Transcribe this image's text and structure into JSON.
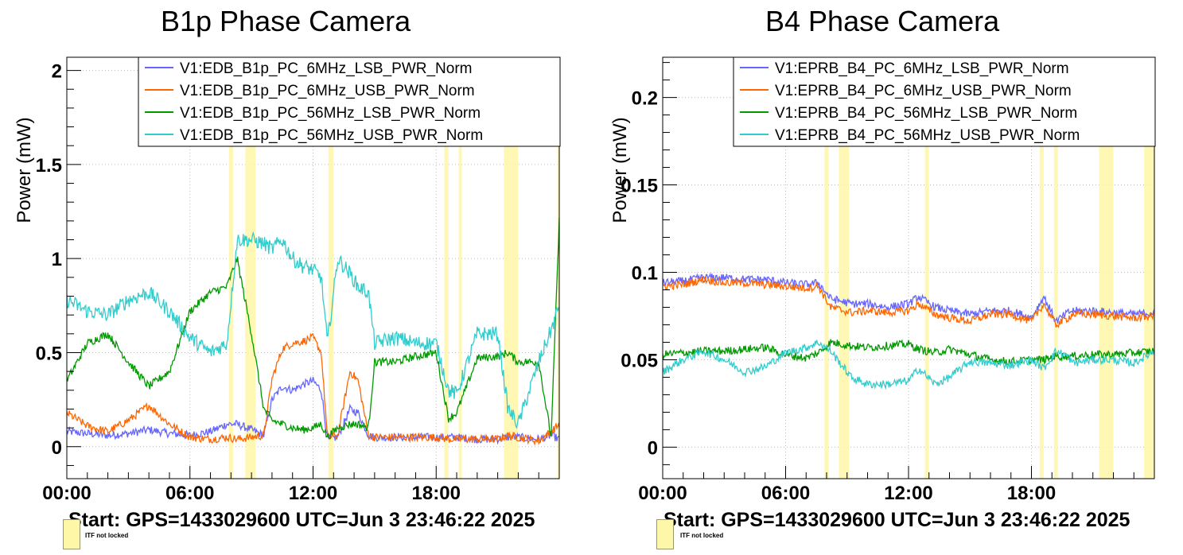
{
  "chart_data": [
    {
      "type": "line",
      "title": "B1p Phase Camera",
      "ylabel": "Power (mW)",
      "xlabel": "",
      "ylim": [
        -0.17,
        2.07
      ],
      "xlim": [
        "00:00",
        "24:00"
      ],
      "grid": true,
      "legend_position": "top-right",
      "x_tick_labels": [
        "00:00",
        "06:00",
        "12:00",
        "18:00"
      ],
      "y_tick_labels": [
        "0",
        "0.5",
        "1",
        "1.5",
        "2"
      ],
      "shaded_windows_hours": [
        [
          7.9,
          8.1
        ],
        [
          8.7,
          9.2
        ],
        [
          12.75,
          13.0
        ],
        [
          18.4,
          18.6
        ],
        [
          19.1,
          19.25
        ],
        [
          21.3,
          22.0
        ],
        [
          23.9,
          24.0
        ]
      ],
      "series": [
        {
          "name": "V1:EDB_B1p_PC_6MHz_LSB_PWR_Norm",
          "color": "#6666ff",
          "x": [
            0,
            1,
            2,
            3,
            4,
            5,
            6,
            7,
            7.8,
            8.3,
            9.0,
            9.6,
            10,
            10.5,
            11,
            11.5,
            12,
            12.4,
            12.7,
            13.2,
            13.8,
            14.2,
            14.7,
            15,
            16,
            17,
            18,
            18.6,
            19,
            20,
            21,
            21.5,
            22,
            23,
            23.6,
            24
          ],
          "y": [
            0.08,
            0.07,
            0.06,
            0.07,
            0.09,
            0.07,
            0.06,
            0.08,
            0.12,
            0.12,
            0.09,
            0.06,
            0.25,
            0.32,
            0.3,
            0.33,
            0.35,
            0.3,
            0.04,
            0.05,
            0.2,
            0.18,
            0.06,
            0.05,
            0.05,
            0.05,
            0.05,
            0.05,
            0.05,
            0.04,
            0.04,
            0.05,
            0.05,
            0.04,
            0.06,
            0.04
          ]
        },
        {
          "name": "V1:EDB_B1p_PC_6MHz_USB_PWR_Norm",
          "color": "#ff6600",
          "x": [
            0,
            1,
            2,
            3,
            4,
            5,
            6,
            7,
            7.8,
            8.3,
            9.0,
            9.6,
            10,
            10.5,
            11,
            11.5,
            12,
            12.4,
            12.7,
            13.2,
            13.8,
            14.2,
            14.7,
            15,
            16,
            17,
            18,
            18.6,
            19,
            20,
            21,
            21.5,
            22,
            23,
            23.6,
            24
          ],
          "y": [
            0.18,
            0.11,
            0.08,
            0.14,
            0.22,
            0.12,
            0.05,
            0.04,
            0.05,
            0.04,
            0.05,
            0.06,
            0.36,
            0.52,
            0.55,
            0.56,
            0.58,
            0.5,
            0.05,
            0.06,
            0.4,
            0.35,
            0.06,
            0.05,
            0.05,
            0.05,
            0.05,
            0.04,
            0.04,
            0.04,
            0.04,
            0.06,
            0.05,
            0.03,
            0.08,
            0.12
          ]
        },
        {
          "name": "V1:EDB_B1p_PC_56MHz_LSB_PWR_Norm",
          "color": "#009900",
          "x": [
            0,
            1,
            2,
            3,
            4,
            5,
            6,
            7,
            7.8,
            8.3,
            9.0,
            9.6,
            10,
            10.5,
            11,
            11.5,
            12,
            12.4,
            12.7,
            13.2,
            13.8,
            14.2,
            14.7,
            15,
            16,
            17,
            18,
            18.6,
            19,
            20,
            21,
            21.5,
            22,
            23,
            23.6,
            24
          ],
          "y": [
            0.35,
            0.55,
            0.6,
            0.45,
            0.32,
            0.4,
            0.72,
            0.82,
            0.85,
            1.0,
            0.6,
            0.2,
            0.14,
            0.12,
            0.1,
            0.09,
            0.1,
            0.12,
            0.05,
            0.1,
            0.12,
            0.12,
            0.1,
            0.45,
            0.45,
            0.48,
            0.5,
            0.15,
            0.18,
            0.47,
            0.48,
            0.5,
            0.45,
            0.45,
            0.05,
            1.2
          ]
        },
        {
          "name": "V1:EDB_B1p_PC_56MHz_USB_PWR_Norm",
          "color": "#33cccc",
          "x": [
            0,
            1,
            2,
            3,
            4,
            5,
            6,
            7,
            7.8,
            8.3,
            9.0,
            9.6,
            10,
            10.5,
            11,
            11.5,
            12,
            12.4,
            12.7,
            13.2,
            13.8,
            14.2,
            14.7,
            15,
            16,
            17,
            18,
            18.6,
            19,
            20,
            21,
            21.5,
            22,
            23,
            23.6,
            24
          ],
          "y": [
            0.78,
            0.72,
            0.7,
            0.78,
            0.82,
            0.72,
            0.58,
            0.5,
            0.55,
            1.1,
            1.1,
            1.08,
            1.05,
            1.1,
            1.0,
            0.96,
            0.94,
            0.9,
            0.55,
            1.0,
            0.92,
            0.85,
            0.82,
            0.55,
            0.58,
            0.55,
            0.55,
            0.3,
            0.28,
            0.6,
            0.6,
            0.2,
            0.12,
            0.45,
            0.62,
            0.75
          ]
        }
      ]
    },
    {
      "type": "line",
      "title": "B4 Phase Camera",
      "ylabel": "Power (mW)",
      "xlabel": "",
      "ylim": [
        -0.018,
        0.223
      ],
      "xlim": [
        "00:00",
        "24:00"
      ],
      "grid": true,
      "legend_position": "top-right",
      "x_tick_labels": [
        "00:00",
        "06:00",
        "12:00",
        "18:00"
      ],
      "y_tick_labels": [
        "0",
        "0.05",
        "0.1",
        "0.15",
        "0.2"
      ],
      "shaded_windows_hours": [
        [
          7.9,
          8.1
        ],
        [
          8.6,
          9.1
        ],
        [
          12.8,
          13.0
        ],
        [
          18.4,
          18.6
        ],
        [
          19.1,
          19.3
        ],
        [
          21.3,
          22.0
        ],
        [
          23.5,
          24.0
        ]
      ],
      "series": [
        {
          "name": "V1:EPRB_B4_PC_6MHz_LSB_PWR_Norm",
          "color": "#6666ff",
          "x": [
            0,
            1,
            2,
            3,
            4,
            5,
            6,
            7,
            7.6,
            8.2,
            9.2,
            10,
            11,
            12,
            12.5,
            13.3,
            14,
            15,
            16,
            17,
            18,
            18.6,
            19.2,
            19.8,
            20,
            21,
            22,
            23,
            24
          ],
          "y": [
            0.094,
            0.095,
            0.097,
            0.097,
            0.096,
            0.096,
            0.094,
            0.093,
            0.094,
            0.085,
            0.082,
            0.082,
            0.08,
            0.082,
            0.086,
            0.08,
            0.078,
            0.076,
            0.078,
            0.078,
            0.074,
            0.086,
            0.072,
            0.077,
            0.078,
            0.078,
            0.077,
            0.076,
            0.077
          ]
        },
        {
          "name": "V1:EPRB_B4_PC_6MHz_USB_PWR_Norm",
          "color": "#ff6600",
          "x": [
            0,
            1,
            2,
            3,
            4,
            5,
            6,
            7,
            7.6,
            8.2,
            9.2,
            10,
            11,
            12,
            12.5,
            13.3,
            14,
            15,
            16,
            17,
            18,
            18.6,
            19.2,
            19.8,
            20,
            21,
            22,
            23,
            24
          ],
          "y": [
            0.092,
            0.093,
            0.096,
            0.094,
            0.094,
            0.093,
            0.092,
            0.091,
            0.092,
            0.08,
            0.077,
            0.078,
            0.077,
            0.078,
            0.082,
            0.076,
            0.074,
            0.072,
            0.076,
            0.076,
            0.072,
            0.082,
            0.07,
            0.074,
            0.076,
            0.076,
            0.075,
            0.074,
            0.075
          ]
        },
        {
          "name": "V1:EPRB_B4_PC_56MHz_LSB_PWR_Norm",
          "color": "#009900",
          "x": [
            0,
            1,
            2,
            3,
            4,
            5,
            6,
            7,
            7.6,
            8.2,
            9.2,
            10,
            11,
            12,
            12.5,
            13.3,
            14,
            15,
            16,
            17,
            18,
            18.6,
            19.2,
            19.8,
            20,
            21,
            22,
            23,
            24
          ],
          "y": [
            0.053,
            0.054,
            0.055,
            0.055,
            0.056,
            0.057,
            0.053,
            0.051,
            0.054,
            0.06,
            0.058,
            0.057,
            0.058,
            0.059,
            0.056,
            0.054,
            0.056,
            0.053,
            0.05,
            0.049,
            0.05,
            0.05,
            0.052,
            0.052,
            0.052,
            0.053,
            0.053,
            0.054,
            0.055
          ]
        },
        {
          "name": "V1:EPRB_B4_PC_56MHz_USB_PWR_Norm",
          "color": "#33cccc",
          "x": [
            0,
            1,
            2,
            3,
            4,
            5,
            6,
            7,
            7.6,
            8.2,
            9.2,
            10,
            11,
            12,
            12.5,
            13.3,
            14,
            15,
            16,
            17,
            18,
            18.6,
            19.2,
            19.8,
            20,
            21,
            22,
            23,
            24
          ],
          "y": [
            0.043,
            0.05,
            0.055,
            0.05,
            0.043,
            0.046,
            0.054,
            0.057,
            0.06,
            0.055,
            0.04,
            0.036,
            0.036,
            0.038,
            0.045,
            0.036,
            0.04,
            0.049,
            0.048,
            0.047,
            0.05,
            0.045,
            0.055,
            0.052,
            0.048,
            0.05,
            0.05,
            0.048,
            0.055
          ]
        }
      ]
    }
  ],
  "footer": {
    "start_text": "Start: GPS=1433029600 UTC=Jun  3 23:46:22 2025",
    "legend_swatch_label": "ITF not locked"
  },
  "colors": {
    "lock_loss_fill": "#fff7a8",
    "grid": "#bbbbbb"
  }
}
